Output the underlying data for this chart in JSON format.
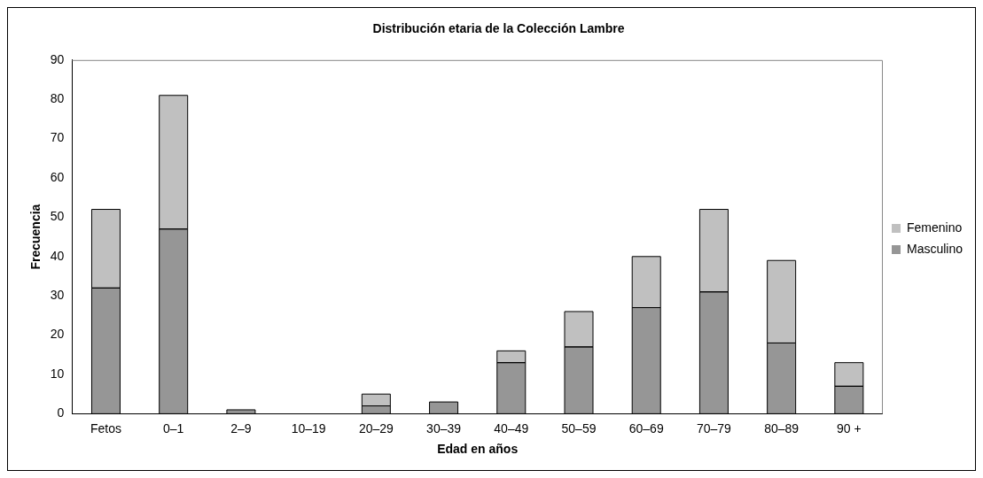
{
  "chart_data": {
    "type": "bar",
    "title": "Distribución etaria de la Colección Lambre",
    "xlabel": "Edad en años",
    "ylabel": "Frecuencia",
    "categories": [
      "Fetos",
      "0–1",
      "2–9",
      "10–19",
      "20–29",
      "30–39",
      "40–49",
      "50–59",
      "60–69",
      "70–79",
      "80–89",
      "90 +"
    ],
    "series": [
      {
        "name": "Masculino",
        "color": "#969696",
        "values": [
          32,
          47,
          1,
          0,
          2,
          3,
          13,
          17,
          27,
          31,
          18,
          7
        ]
      },
      {
        "name": "Femenino",
        "color": "#c0c0c0",
        "values": [
          20,
          34,
          0,
          0,
          3,
          0,
          3,
          9,
          13,
          21,
          21,
          6
        ]
      }
    ],
    "stacked": true,
    "ylim": [
      0,
      90
    ],
    "yticks": [
      0,
      10,
      20,
      30,
      40,
      50,
      60,
      70,
      80,
      90
    ],
    "grid": false,
    "legend": "right"
  }
}
